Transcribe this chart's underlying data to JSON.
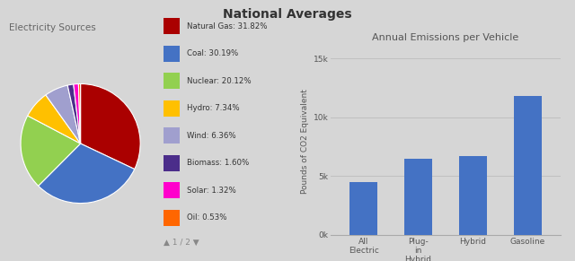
{
  "title": "National Averages",
  "background_color": "#d6d6d6",
  "pie_title": "Electricity Sources",
  "pie_labels": [
    "Natural Gas",
    "Coal",
    "Nuclear",
    "Hydro",
    "Wind",
    "Biomass",
    "Solar",
    "Oil"
  ],
  "pie_values": [
    31.82,
    30.19,
    20.12,
    7.34,
    6.36,
    1.6,
    1.32,
    0.53
  ],
  "pie_colors": [
    "#aa0000",
    "#4472c4",
    "#92d050",
    "#ffc000",
    "#a09fce",
    "#4b2d8a",
    "#ff00cc",
    "#ff6600"
  ],
  "pie_legend_labels": [
    "Natural Gas: 31.82%",
    "Coal: 30.19%",
    "Nuclear: 20.12%",
    "Hydro: 7.34%",
    "Wind: 6.36%",
    "Biomass: 1.60%",
    "Solar: 1.32%",
    "Oil: 0.53%"
  ],
  "bar_title": "Annual Emissions per Vehicle",
  "bar_categories": [
    "All\nElectric",
    "Plug-\nin\nHybrid",
    "Hybrid",
    "Gasoline"
  ],
  "bar_values": [
    4500,
    6500,
    6700,
    11800
  ],
  "bar_color": "#4472c4",
  "bar_ylabel": "Pounds of CO2 Equivalent",
  "bar_yticks": [
    0,
    5000,
    10000,
    15000
  ],
  "bar_ytick_labels": [
    "0k",
    "5k",
    "10k",
    "15k"
  ],
  "bar_ylim": [
    0,
    16000
  ],
  "page_indicator": "1 / 2"
}
